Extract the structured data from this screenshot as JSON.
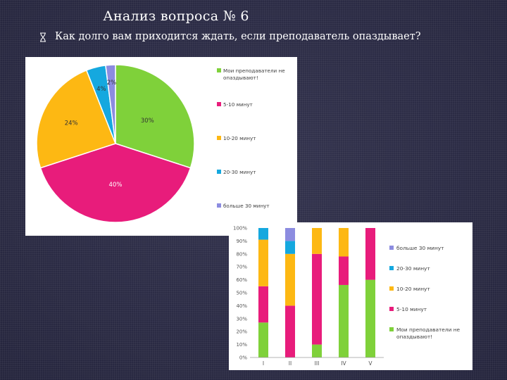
{
  "slide": {
    "title": "Анализ вопроса № 6",
    "question": "Как долго вам приходится ждать, если преподаватель опаздывает?"
  },
  "colors": {
    "background": "#2b2b45",
    "green": "#7fd13a",
    "magenta": "#e81c7b",
    "orange": "#fdb813",
    "cyan": "#15a8df",
    "lavender": "#8c8ce0"
  },
  "icons": {
    "bullet": "hourglass-icon"
  },
  "chart_data": [
    {
      "type": "pie",
      "title": "",
      "categories": [
        "Мои преподаватели не опаздывают!",
        "5-10 минут",
        "10-20 минут",
        "20-30 минут",
        "больше 30 минут"
      ],
      "values": [
        30,
        40,
        24,
        4,
        2
      ],
      "data_labels": [
        "30%",
        "40%",
        "24%",
        "4%",
        "2%"
      ],
      "colors": [
        "#7fd13a",
        "#e81c7b",
        "#fdb813",
        "#15a8df",
        "#8c8ce0"
      ],
      "legend_placement": "right"
    },
    {
      "type": "bar",
      "stacked": "percent",
      "title": "",
      "categories": [
        "I",
        "II",
        "III",
        "IV",
        "V"
      ],
      "series": [
        {
          "name": "Мои преподаватели не опаздывают!",
          "color": "#7fd13a",
          "values": [
            27,
            0,
            10,
            56,
            60
          ]
        },
        {
          "name": "5-10 минут",
          "color": "#e81c7b",
          "values": [
            28,
            40,
            70,
            22,
            40
          ]
        },
        {
          "name": "10-20 минут",
          "color": "#fdb813",
          "values": [
            36,
            40,
            20,
            22,
            0
          ]
        },
        {
          "name": "20-30 минут",
          "color": "#15a8df",
          "values": [
            9,
            10,
            0,
            0,
            0
          ]
        },
        {
          "name": "больше 30 минут",
          "color": "#8c8ce0",
          "values": [
            0,
            10,
            0,
            0,
            0
          ]
        }
      ],
      "ylim": [
        0,
        100
      ],
      "yticks": [
        "0%",
        "10%",
        "20%",
        "30%",
        "40%",
        "50%",
        "60%",
        "70%",
        "80%",
        "90%",
        "100%"
      ],
      "grid": false,
      "legend_placement": "right"
    }
  ]
}
